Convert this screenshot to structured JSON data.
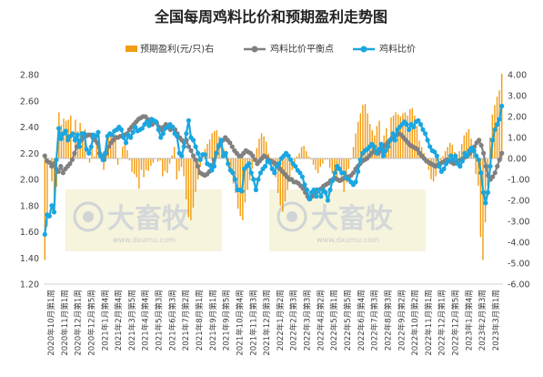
{
  "chart_data": {
    "type": "bar+line",
    "title": "全国每周鸡料比价和预期盈利走势图",
    "legend": {
      "placement": "top",
      "items": [
        {
          "label": "预期盈利(元/只)右",
          "kind": "bar",
          "color": "#f39c12"
        },
        {
          "label": "鸡料比价平衡点",
          "kind": "line",
          "color": "#808080"
        },
        {
          "label": "鸡料比价",
          "kind": "line",
          "color": "#1aa6e0"
        }
      ]
    },
    "left_axis": {
      "min": 1.2,
      "max": 2.8,
      "step": 0.2,
      "ticks": [
        "1.20",
        "1.40",
        "1.60",
        "1.80",
        "2.00",
        "2.20",
        "2.40",
        "2.60",
        "2.80"
      ]
    },
    "right_axis": {
      "min": -6,
      "max": 4,
      "step": 1,
      "ticks": [
        "-6.00",
        "-5.00",
        "-4.00",
        "-3.00",
        "-2.00",
        "-1.00",
        "0.00",
        "1.00",
        "2.00",
        "3.00",
        "4.00"
      ]
    },
    "grid": false,
    "categories": [
      "2020年10月第1周",
      "2020年11月第1周",
      "2020年12月第1周",
      "2020年12月第5周",
      "2021年1月第4周",
      "2021年2月第4周",
      "2021年3月第5周",
      "2021年4月第4周",
      "2021年5月第3周",
      "2021年6月第3周",
      "2021年7月第2周",
      "2021年8月第1周",
      "2021年9月第1周",
      "2021年9月第5周",
      "2021年10月第4周",
      "2021年11月第3周",
      "2021年12月第3周",
      "2022年1月第2周",
      "2022年2月第3周",
      "2022年3月第3周",
      "2022年4月第2周",
      "2022年5月第1周",
      "2022年5月第5周",
      "2022年6月第4周",
      "2022年7月第3周",
      "2022年8月第3周",
      "2022年9月第2周",
      "2022年10月第2周",
      "2022年11月第1周",
      "2022年12月第1周",
      "2022年12月第5周",
      "2023年1月第4周",
      "2023年2月第3周",
      "2023年3月第1周"
    ],
    "ratio": [
      1.58,
      1.73,
      1.72,
      1.8,
      1.75,
      2.15,
      2.39,
      2.31,
      2.35,
      2.37,
      2.3,
      2.33,
      2.35,
      2.3,
      2.34,
      2.25,
      2.35,
      2.35,
      2.23,
      2.2,
      2.25,
      2.34,
      2.33,
      2.36,
      2.18,
      2.15,
      2.2,
      2.33,
      2.35,
      2.34,
      2.37,
      2.38,
      2.4,
      2.38,
      2.32,
      2.28,
      2.34,
      2.32,
      2.36,
      2.4,
      2.37,
      2.38,
      2.39,
      2.42,
      2.44,
      2.41,
      2.46,
      2.45,
      2.44,
      2.38,
      2.32,
      2.35,
      2.39,
      2.4,
      2.42,
      2.4,
      2.35,
      2.33,
      2.2,
      2.18,
      2.25,
      2.35,
      2.45,
      2.32,
      2.3,
      2.25,
      2.2,
      2.15,
      2.19,
      2.19,
      2.12,
      2.11,
      2.07,
      2.1,
      2.2,
      2.26,
      2.3,
      2.18,
      2.2,
      2.12,
      2.07,
      2.05,
      2.0,
      1.92,
      1.92,
      1.91,
      2.08,
      2.1,
      2.12,
      2.05,
      2.0,
      1.92,
      2.0,
      2.05,
      2.08,
      2.1,
      2.14,
      2.13,
      2.08,
      2.05,
      2.1,
      2.12,
      2.16,
      2.18,
      2.2,
      2.18,
      2.15,
      2.12,
      2.1,
      2.07,
      2.05,
      2.02,
      1.96,
      1.92,
      1.85,
      1.9,
      1.92,
      1.87,
      1.92,
      1.87,
      1.92,
      1.9,
      1.84,
      1.92,
      1.99,
      2.05,
      2.1,
      2.08,
      2.05,
      2.05,
      2.01,
      2.0,
      1.98,
      1.96,
      1.98,
      2.06,
      2.15,
      2.2,
      2.22,
      2.23,
      2.25,
      2.27,
      2.25,
      2.2,
      2.23,
      2.27,
      2.18,
      2.22,
      2.25,
      2.3,
      2.35,
      2.3,
      2.38,
      2.4,
      2.42,
      2.44,
      2.42,
      2.38,
      2.42,
      2.4,
      2.44,
      2.45,
      2.42,
      2.38,
      2.35,
      2.3,
      2.25,
      2.22,
      2.21,
      2.18,
      2.1,
      2.06,
      2.08,
      2.12,
      2.14,
      2.18,
      2.15,
      2.18,
      2.12,
      2.1,
      2.14,
      2.2,
      2.18,
      2.22,
      2.24,
      2.22,
      2.18,
      2.15,
      2.05,
      1.9,
      1.82,
      1.9,
      2.1,
      2.3,
      2.38,
      2.42,
      2.46,
      2.56
    ],
    "balance": [
      2.18,
      2.14,
      2.13,
      2.1,
      2.12,
      2.08,
      2.06,
      2.1,
      2.05,
      2.08,
      2.1,
      2.12,
      2.15,
      2.2,
      2.25,
      2.28,
      2.3,
      2.32,
      2.33,
      2.34,
      2.34,
      2.32,
      2.3,
      2.28,
      2.2,
      2.18,
      2.15,
      2.2,
      2.25,
      2.28,
      2.3,
      2.32,
      2.32,
      2.33,
      2.33,
      2.34,
      2.35,
      2.38,
      2.4,
      2.42,
      2.44,
      2.46,
      2.47,
      2.48,
      2.48,
      2.46,
      2.44,
      2.42,
      2.44,
      2.43,
      2.4,
      2.38,
      2.4,
      2.42,
      2.4,
      2.38,
      2.4,
      2.38,
      2.35,
      2.32,
      2.3,
      2.28,
      2.3,
      2.25,
      2.22,
      2.18,
      2.15,
      2.1,
      2.05,
      2.04,
      2.03,
      2.04,
      2.06,
      2.1,
      2.15,
      2.2,
      2.25,
      2.28,
      2.3,
      2.32,
      2.3,
      2.28,
      2.25,
      2.22,
      2.2,
      2.18,
      2.18,
      2.2,
      2.22,
      2.21,
      2.2,
      2.18,
      2.15,
      2.12,
      2.14,
      2.16,
      2.18,
      2.17,
      2.15,
      2.14,
      2.13,
      2.12,
      2.1,
      2.08,
      2.06,
      2.04,
      2.02,
      2.0,
      2.0,
      1.98,
      1.98,
      1.97,
      1.95,
      1.93,
      1.9,
      1.87,
      1.85,
      1.87,
      1.9,
      1.92,
      1.92,
      1.93,
      1.95,
      1.96,
      1.97,
      1.99,
      2.0,
      2.01,
      2.0,
      1.99,
      2.0,
      2.01,
      2.02,
      2.02,
      2.03,
      2.05,
      2.08,
      2.1,
      2.12,
      2.14,
      2.15,
      2.16,
      2.18,
      2.2,
      2.22,
      2.21,
      2.2,
      2.22,
      2.24,
      2.26,
      2.28,
      2.3,
      2.32,
      2.33,
      2.34,
      2.35,
      2.34,
      2.32,
      2.3,
      2.28,
      2.26,
      2.25,
      2.24,
      2.23,
      2.2,
      2.18,
      2.16,
      2.14,
      2.13,
      2.12,
      2.11,
      2.1,
      2.11,
      2.12,
      2.13,
      2.14,
      2.15,
      2.14,
      2.13,
      2.12,
      2.13,
      2.14,
      2.15,
      2.16,
      2.17,
      2.18,
      2.2,
      2.22,
      2.25,
      2.28,
      2.3,
      2.26,
      2.2,
      2.1,
      2.03,
      2.0,
      2.02,
      2.05,
      2.1,
      2.15,
      2.2
    ],
    "profit": [
      -4.85,
      -3.25,
      0.0,
      -1.1,
      -2.48,
      -1.35,
      2.2,
      1.6,
      1.9,
      1.8,
      1.85,
      2.05,
      0.2,
      1.85,
      1.3,
      1.7,
      1.3,
      1.4,
      0.0,
      -0.2,
      0.85,
      0.1,
      0.65,
      1.1,
      -0.1,
      -0.55,
      0.6,
      1.0,
      1.15,
      1.2,
      1.15,
      -0.3,
      0.0,
      0.55,
      0.65,
      0.4,
      -0.1,
      -0.65,
      -0.75,
      -0.9,
      -1.45,
      -0.55,
      -0.9,
      -0.55,
      -0.6,
      -0.35,
      -0.2,
      0.0,
      -0.15,
      -0.1,
      -0.85,
      -0.6,
      -0.7,
      -0.25,
      0.15,
      0.55,
      -1.0,
      -0.6,
      -0.4,
      -0.85,
      -1.95,
      -2.8,
      -2.95,
      -2.35,
      -1.6,
      -1.0,
      -0.4,
      0.2,
      0.45,
      0.7,
      0.9,
      1.2,
      1.3,
      1.35,
      1.05,
      0.75,
      0.45,
      0.15,
      -0.45,
      -0.7,
      -1.2,
      -1.65,
      -2.4,
      -2.75,
      -2.95,
      -2.1,
      -1.5,
      -1.05,
      -0.5,
      0.05,
      0.5,
      0.95,
      1.2,
      1.05,
      0.8,
      0.25,
      -0.15,
      -0.4,
      -0.9,
      -1.65,
      -2.25,
      -2.55,
      -2.05,
      -1.5,
      -0.95,
      -0.55,
      -0.2,
      0.1,
      0.25,
      0.55,
      0.6,
      0.35,
      0.1,
      -0.05,
      -0.3,
      -0.55,
      -0.7,
      -0.4,
      -0.25,
      -0.05,
      -0.05,
      -0.45,
      -0.7,
      -1.1,
      -0.9,
      -0.55,
      -1.15,
      -1.6,
      -1.15,
      -0.5,
      -0.05,
      0.55,
      1.2,
      1.75,
      2.15,
      2.55,
      2.6,
      2.15,
      1.65,
      1.35,
      1.1,
      1.55,
      1.8,
      0.35,
      1.1,
      1.45,
      0.75,
      1.95,
      2.05,
      2.2,
      2.1,
      2.0,
      2.15,
      2.2,
      2.05,
      2.35,
      2.4,
      2.05,
      1.55,
      0.85,
      0.55,
      0.25,
      -0.1,
      -0.55,
      -1.0,
      -1.1,
      -0.85,
      -0.45,
      -0.1,
      0.1,
      0.35,
      0.55,
      0.75,
      0.65,
      0.3,
      0.1,
      0.35,
      0.7,
      1.1,
      1.25,
      1.4,
      0.95,
      0.5,
      -0.75,
      -1.3,
      -3.75,
      -4.85,
      -3.05,
      -1.3,
      1.0,
      2.1,
      2.55,
      2.95,
      3.25,
      4.05
    ]
  },
  "watermarks": [
    {
      "text": "大畜牧",
      "url": "www.dxumu.com"
    },
    {
      "text": "大畜牧",
      "url": "www.dxumu.com"
    }
  ]
}
